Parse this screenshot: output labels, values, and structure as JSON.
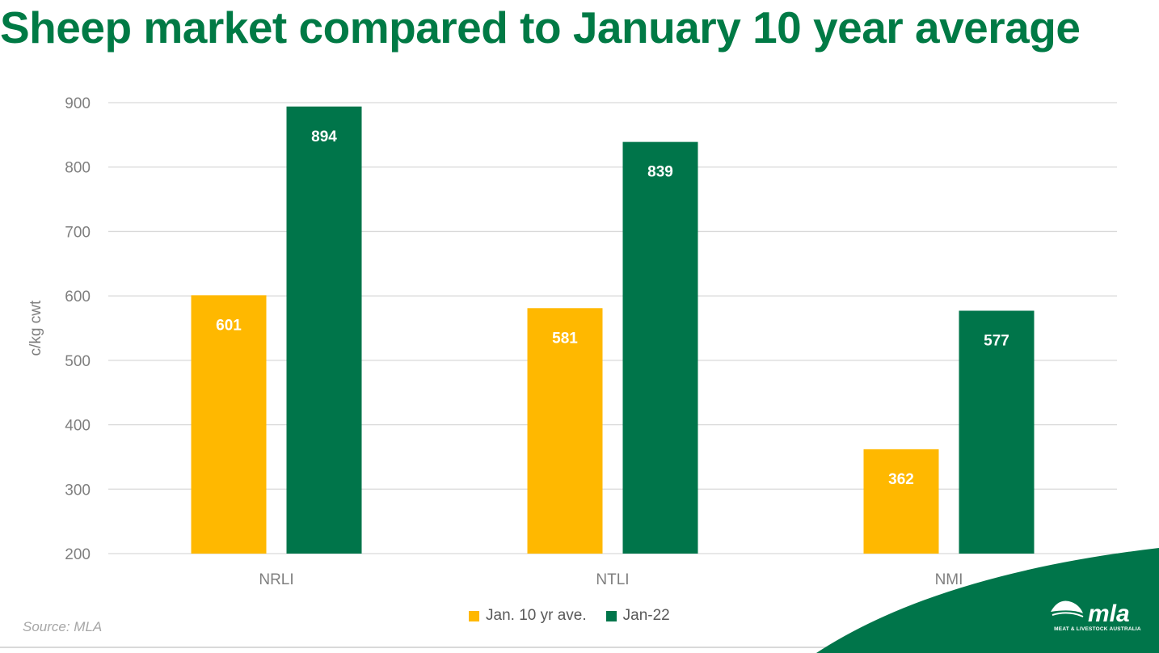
{
  "title": "Sheep market compared to January 10 year average",
  "source": "Source: MLA",
  "logo": {
    "text": "mla",
    "subtitle": "MEAT & LIVESTOCK AUSTRALIA"
  },
  "colors": {
    "brand_green": "#007A45",
    "series_gold": "#FFB800",
    "series_green": "#00754A",
    "grid": "#D9D9D9",
    "axis_text": "#7F7F7F"
  },
  "chart_data": {
    "type": "bar",
    "title": "Sheep market compared to January 10 year average",
    "xlabel": "",
    "ylabel": "c/kg cwt",
    "ylim": [
      200,
      900
    ],
    "yticks": [
      200,
      300,
      400,
      500,
      600,
      700,
      800,
      900
    ],
    "categories": [
      "NRLI",
      "NTLI",
      "NMI"
    ],
    "series": [
      {
        "name": "Jan. 10 yr ave.",
        "color": "#FFB800",
        "values": [
          601,
          581,
          362
        ]
      },
      {
        "name": "Jan-22",
        "color": "#00754A",
        "values": [
          894,
          839,
          577
        ]
      }
    ],
    "grid": true,
    "legend_position": "bottom",
    "data_labels": true
  }
}
